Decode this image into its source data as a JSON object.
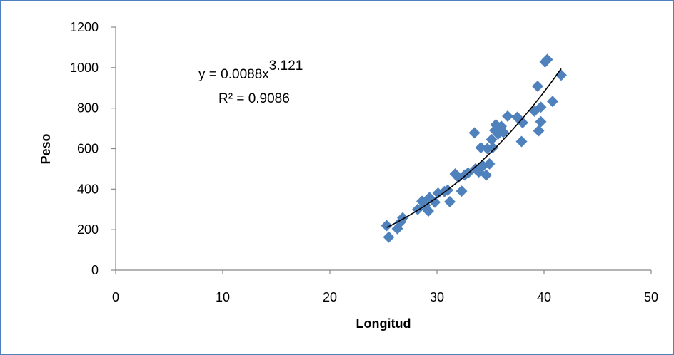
{
  "chart_data": {
    "type": "scatter",
    "xlabel": "Longitud",
    "ylabel": "Peso",
    "xlim": [
      0,
      50
    ],
    "ylim": [
      0,
      1200
    ],
    "xticks": [
      0,
      10,
      20,
      30,
      40,
      50
    ],
    "yticks": [
      0,
      200,
      400,
      600,
      800,
      1000,
      1200
    ],
    "grid": false,
    "marker_color": "#4f81bd",
    "trendline": {
      "type": "power",
      "coefficient": 0.0088,
      "exponent": 3.121,
      "x_range": [
        25.3,
        41.6
      ],
      "color": "#000000",
      "equation_prefix": "y = 0.0088x",
      "equation_exponent": "3.121",
      "r_squared_label": "R² = 0.9086"
    },
    "series": [
      {
        "points": [
          [
            25.3,
            220
          ],
          [
            25.5,
            163
          ],
          [
            26.3,
            205
          ],
          [
            26.6,
            238
          ],
          [
            26.8,
            258
          ],
          [
            28.2,
            300
          ],
          [
            28.6,
            340
          ],
          [
            28.9,
            320
          ],
          [
            29.2,
            292
          ],
          [
            29.3,
            358
          ],
          [
            29.8,
            335
          ],
          [
            30.1,
            380
          ],
          [
            30.7,
            388
          ],
          [
            31.0,
            395
          ],
          [
            31.2,
            338
          ],
          [
            31.7,
            475
          ],
          [
            32.0,
            458
          ],
          [
            32.3,
            390
          ],
          [
            32.6,
            470
          ],
          [
            32.9,
            480
          ],
          [
            33.5,
            678
          ],
          [
            33.6,
            500
          ],
          [
            33.9,
            485
          ],
          [
            34.1,
            605
          ],
          [
            34.3,
            515
          ],
          [
            34.6,
            470
          ],
          [
            34.7,
            600
          ],
          [
            34.9,
            525
          ],
          [
            35.1,
            645
          ],
          [
            35.2,
            605
          ],
          [
            35.4,
            690
          ],
          [
            35.5,
            718
          ],
          [
            35.7,
            672
          ],
          [
            35.9,
            698
          ],
          [
            36.0,
            710
          ],
          [
            36.2,
            680
          ],
          [
            36.6,
            760
          ],
          [
            37.5,
            755
          ],
          [
            37.9,
            635
          ],
          [
            38.0,
            728
          ],
          [
            39.1,
            785
          ],
          [
            39.4,
            908
          ],
          [
            39.5,
            688
          ],
          [
            39.7,
            805
          ],
          [
            39.7,
            733
          ],
          [
            40.1,
            1028
          ],
          [
            40.3,
            1040
          ],
          [
            40.8,
            833
          ],
          [
            41.6,
            963
          ]
        ]
      }
    ]
  }
}
